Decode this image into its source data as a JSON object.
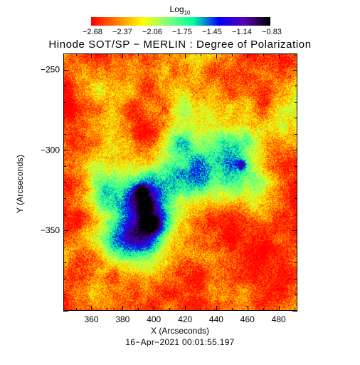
{
  "colorbar": {
    "title": "Log",
    "title_subscript": "10",
    "ticks": [
      "−2.68",
      "−2.37",
      "−2.06",
      "−1.75",
      "−1.45",
      "−1.14",
      "−0.83"
    ],
    "colors": [
      "#ff0000",
      "#ff7f00",
      "#ffff00",
      "#7fff7f",
      "#00ff9f",
      "#0000ff",
      "#5a00b4",
      "#000000"
    ]
  },
  "title": "Hinode SOT/SP − MERLIN : Degree of Polarization",
  "xlabel": "X (Arcseconds)",
  "ylabel": "Y (Arcseconds)",
  "timestamp": "16−Apr−2021 00:01:55.197",
  "x_axis": {
    "range": [
      342,
      492
    ],
    "major_ticks": [
      "360",
      "380",
      "400",
      "420",
      "440",
      "460",
      "480"
    ]
  },
  "y_axis": {
    "range": [
      -400,
      -240
    ],
    "major_ticks": [
      "−250",
      "−300",
      "−350"
    ]
  }
}
